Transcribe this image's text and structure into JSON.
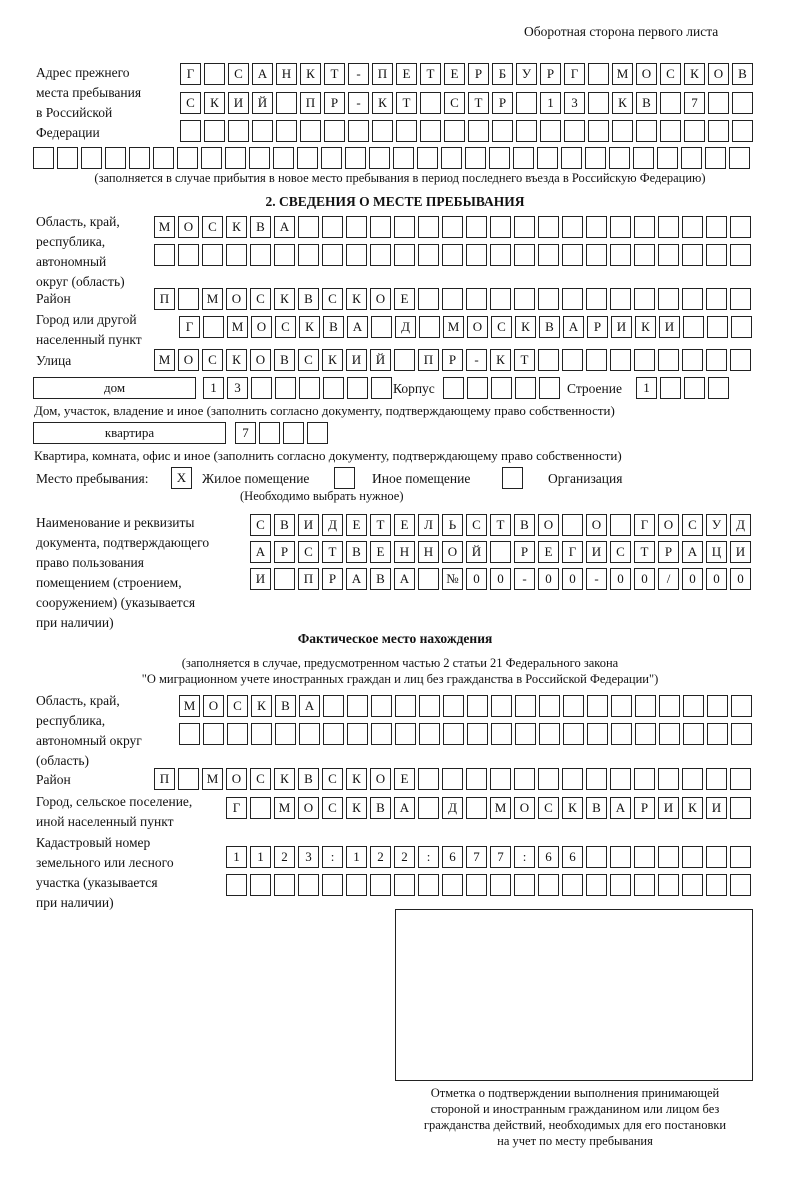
{
  "page_header": "Оборотная сторона первого листа",
  "previous_address": {
    "label": [
      "Адрес прежнего",
      "места пребывания",
      "в Российской",
      "Федерации"
    ],
    "rows": [
      [
        "Г",
        "",
        "С",
        "А",
        "Н",
        "К",
        "Т",
        "-",
        "П",
        "Е",
        "Т",
        "Е",
        "Р",
        "Б",
        "У",
        "Р",
        "Г",
        "",
        "М",
        "О",
        "С",
        "К",
        "О",
        "В"
      ],
      [
        "С",
        "К",
        "И",
        "Й",
        "",
        "П",
        "Р",
        "-",
        "К",
        "Т",
        "",
        "С",
        "Т",
        "Р",
        "",
        "1",
        "3",
        "",
        "К",
        "В",
        "",
        "7",
        "",
        ""
      ],
      [
        "",
        "",
        "",
        "",
        "",
        "",
        "",
        "",
        "",
        "",
        "",
        "",
        "",
        "",
        "",
        "",
        "",
        "",
        "",
        "",
        "",
        "",
        "",
        ""
      ],
      [
        "",
        "",
        "",
        "",
        "",
        "",
        "",
        "",
        "",
        "",
        "",
        "",
        "",
        "",
        "",
        "",
        "",
        "",
        "",
        "",
        "",
        "",
        "",
        "",
        "",
        "",
        "",
        "",
        "",
        ""
      ]
    ],
    "note": "(заполняется в случае прибытия в новое место пребывания в период последнего въезда в Российскую Федерацию)"
  },
  "section2": {
    "title": "2. СВЕДЕНИЯ О МЕСТЕ ПРЕБЫВАНИЯ",
    "region_label": [
      "Область, край,",
      "республика,",
      "автономный",
      "округ (область)"
    ],
    "region_rows": [
      [
        "М",
        "О",
        "С",
        "К",
        "В",
        "А",
        "",
        "",
        "",
        "",
        "",
        "",
        "",
        "",
        "",
        "",
        "",
        "",
        "",
        "",
        "",
        "",
        "",
        "",
        ""
      ],
      [
        "",
        "",
        "",
        "",
        "",
        "",
        "",
        "",
        "",
        "",
        "",
        "",
        "",
        "",
        "",
        "",
        "",
        "",
        "",
        "",
        "",
        "",
        "",
        "",
        ""
      ]
    ],
    "district_label": "Район",
    "district_row": [
      "П",
      "",
      "М",
      "О",
      "С",
      "К",
      "В",
      "С",
      "К",
      "О",
      "Е",
      "",
      "",
      "",
      "",
      "",
      "",
      "",
      "",
      "",
      "",
      "",
      "",
      "",
      ""
    ],
    "city_label": [
      "Город или другой",
      "населенный пункт"
    ],
    "city_row": [
      "Г",
      "",
      "М",
      "О",
      "С",
      "К",
      "В",
      "А",
      "",
      "Д",
      "",
      "М",
      "О",
      "С",
      "К",
      "В",
      "А",
      "Р",
      "И",
      "К",
      "И",
      "",
      "",
      ""
    ],
    "street_label": "Улица",
    "street_row": [
      "М",
      "О",
      "С",
      "К",
      "О",
      "В",
      "С",
      "К",
      "И",
      "Й",
      "",
      "П",
      "Р",
      "-",
      "К",
      "Т",
      "",
      "",
      "",
      "",
      "",
      "",
      "",
      "",
      ""
    ],
    "house_type": "дом",
    "house_cells": [
      "1",
      "3",
      "",
      "",
      "",
      "",
      "",
      ""
    ],
    "korpus_label": "Корпус",
    "korpus_cells": [
      "",
      "",
      "",
      "",
      ""
    ],
    "building_label": "Строение",
    "building_cells": [
      "1",
      "",
      "",
      ""
    ],
    "house_note": "Дом, участок, владение и иное (заполнить согласно документу, подтверждающему право собственности)",
    "apt_type": "квартира",
    "apt_cells": [
      "7",
      "",
      "",
      ""
    ],
    "apt_note": "Квартира, комната, офис и иное (заполнить согласно документу, подтверждающему право собственности)",
    "stay_label": "Место пребывания:",
    "stay_options": [
      {
        "label": "Жилое помещение",
        "mark": "Х"
      },
      {
        "label": "Иное помещение",
        "mark": ""
      },
      {
        "label": "Организация",
        "mark": ""
      }
    ],
    "stay_note": "(Необходимо выбрать нужное)",
    "doc_label": [
      "Наименование и реквизиты",
      "документа, подтверждающего",
      "право пользования",
      "помещением (строением,",
      "сооружением) (указывается",
      "при наличии)"
    ],
    "doc_rows": [
      [
        "С",
        "В",
        "И",
        "Д",
        "Е",
        "Т",
        "Е",
        "Л",
        "Ь",
        "С",
        "Т",
        "В",
        "О",
        "",
        "О",
        "",
        "Г",
        "О",
        "С",
        "У",
        "Д"
      ],
      [
        "А",
        "Р",
        "С",
        "Т",
        "В",
        "Е",
        "Н",
        "Н",
        "О",
        "Й",
        "",
        "Р",
        "Е",
        "Г",
        "И",
        "С",
        "Т",
        "Р",
        "А",
        "Ц",
        "И"
      ],
      [
        "И",
        "",
        "П",
        "Р",
        "А",
        "В",
        "А",
        "",
        "№",
        "0",
        "0",
        "-",
        "0",
        "0",
        "-",
        "0",
        "0",
        "/",
        "0",
        "0",
        "0"
      ]
    ]
  },
  "actual": {
    "title": "Фактическое место нахождения",
    "note": [
      "(заполняется в случае, предусмотренном частью 2 статьи 21 Федерального закона",
      "\"О миграционном учете иностранных граждан и лиц без гражданства в Российской Федерации\")"
    ],
    "region_label": [
      "Область, край,",
      "республика,",
      "автономный округ",
      "(область)"
    ],
    "region_rows": [
      [
        "М",
        "О",
        "С",
        "К",
        "В",
        "А",
        "",
        "",
        "",
        "",
        "",
        "",
        "",
        "",
        "",
        "",
        "",
        "",
        "",
        "",
        "",
        "",
        "",
        ""
      ],
      [
        "",
        "",
        "",
        "",
        "",
        "",
        "",
        "",
        "",
        "",
        "",
        "",
        "",
        "",
        "",
        "",
        "",
        "",
        "",
        "",
        "",
        "",
        "",
        ""
      ]
    ],
    "district_label": "Район",
    "district_row": [
      "П",
      "",
      "М",
      "О",
      "С",
      "К",
      "В",
      "С",
      "К",
      "О",
      "Е",
      "",
      "",
      "",
      "",
      "",
      "",
      "",
      "",
      "",
      "",
      "",
      "",
      "",
      ""
    ],
    "city_label": [
      "Город, сельское поселение,",
      "иной населенный пункт"
    ],
    "city_row": [
      "Г",
      "",
      "М",
      "О",
      "С",
      "К",
      "В",
      "А",
      "",
      "Д",
      "",
      "М",
      "О",
      "С",
      "К",
      "В",
      "А",
      "Р",
      "И",
      "К",
      "И",
      ""
    ],
    "cadastre_label": [
      "Кадастровый номер",
      "земельного или лесного",
      "участка (указывается",
      "при наличии)"
    ],
    "cadastre_rows": [
      [
        "1",
        "1",
        "2",
        "3",
        ":",
        "1",
        "2",
        "2",
        ":",
        "6",
        "7",
        "7",
        ":",
        "6",
        "6",
        "",
        "",
        "",
        "",
        "",
        "",
        ""
      ],
      [
        "",
        "",
        "",
        "",
        "",
        "",
        "",
        "",
        "",
        "",
        "",
        "",
        "",
        "",
        "",
        "",
        "",
        "",
        "",
        "",
        "",
        ""
      ]
    ]
  },
  "confirmation_caption": [
    "Отметка о подтверждении выполнения принимающей",
    "стороной и иностранным гражданином или лицом без",
    "гражданства действий, необходимых для его постановки",
    "на учет по месту пребывания"
  ]
}
